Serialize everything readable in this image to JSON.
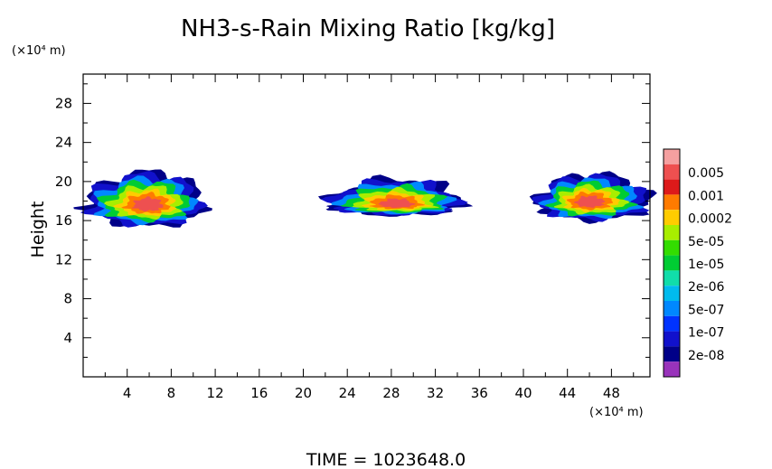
{
  "chart_data": {
    "type": "heatmap",
    "title": "NH3-s-Rain Mixing Ratio [kg/kg]",
    "ylabel": "Height",
    "y_unit": "(×10⁴ m)",
    "x_unit": "(×10⁴ m)",
    "x_range": [
      0,
      51.5
    ],
    "y_range": [
      0,
      31
    ],
    "x_ticks": [
      "4",
      "8",
      "12",
      "16",
      "20",
      "24",
      "28",
      "32",
      "36",
      "40",
      "44",
      "48"
    ],
    "y_ticks": [
      "4",
      "8",
      "12",
      "16",
      "20",
      "24",
      "28"
    ],
    "grid": false,
    "legend_placement": "right",
    "legend_labels": [
      "0.005",
      "0.001",
      "0.0002",
      "5e-05",
      "1e-05",
      "2e-06",
      "5e-07",
      "1e-07",
      "2e-08"
    ],
    "legend_colors": [
      "#f5a0a0",
      "#ee5050",
      "#dd1a1a",
      "#ff7b00",
      "#ffcc00",
      "#a8ee00",
      "#33dd00",
      "#00cc33",
      "#11ddaa",
      "#00bbee",
      "#0088ff",
      "#0033ff",
      "#1111cc",
      "#000088",
      "#9933bb"
    ],
    "footer": "TIME = 1023648.0",
    "clouds": [
      {
        "x_range": [
          0,
          11
        ],
        "y_range": [
          15.4,
          21
        ],
        "peak_x": 6,
        "peak_y": 17.5
      },
      {
        "x_range": [
          22,
          34.5
        ],
        "y_range": [
          16.5,
          20.3
        ],
        "peak_x": 28.5,
        "peak_y": 17.6
      },
      {
        "x_range": [
          41,
          51.5
        ],
        "y_range": [
          16,
          20.8
        ],
        "peak_x": 46,
        "peak_y": 17.8
      }
    ]
  }
}
